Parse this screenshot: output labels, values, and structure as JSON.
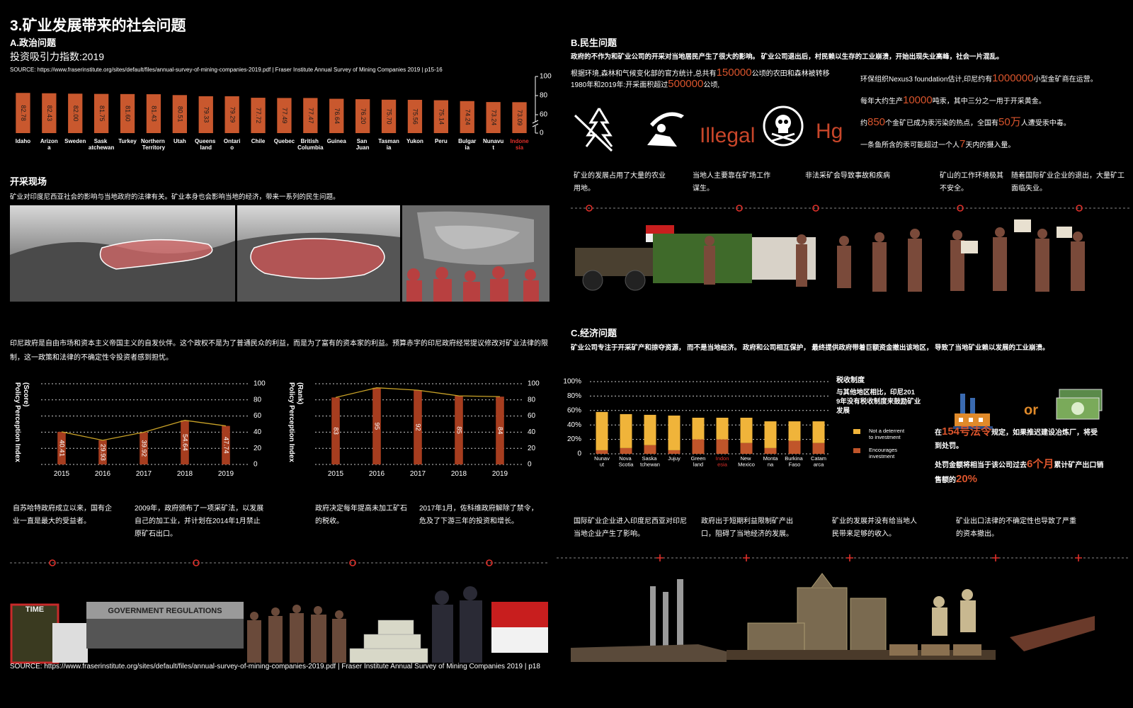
{
  "header": {
    "title": "3.矿业发展带来的社会问题"
  },
  "section_a": {
    "title": "A.政治问题",
    "subtitle": "投资吸引力指数:2019",
    "source": "SOURCE: https://www.fraserinstitute.org/sites/default/files/annual-survey-of-mining-companies-2019.pdf | Fraser Institute Annual Survey of Mining Companies 2019 | p15-16",
    "site_title": "开采现场",
    "site_text": "矿业对印度尼西亚社会的影响与当地政府的法律有关。矿业本身也会影响当地的经济，带来一系列的民生问题。",
    "paragraph": "印尼政府是自由市场和资本主义帝国主义的自发伙伴。这个政权不是为了普通民众的利益，而是为了富有的资本家的利益。预算赤字的印尼政府经常提议修改对矿业法律的限制，这一政策和法律的不确定性令投资者感到担忧。",
    "timeline": [
      "自苏哈特政府成立以来，国有企业一直是最大的受益者。",
      "2009年，政府颁布了一项采矿法，以发展自己的加工业，并计划在2014年1月禁止原矿石出口。",
      "政府决定每年提高未加工矿石的税收。",
      "2017年1月，佐科维政府解除了禁令，危及了下游三年的投资和增长。"
    ],
    "time_cover": "TIME",
    "banner": "GOVERNMENT REGULATIONS",
    "source_bottom": "SOURCE: https://www.fraserinstitute.org/sites/default/files/annual-survey-of-mining-companies-2019.pdf | Fraser Institute Annual Survey of Mining Companies 2019 | p18"
  },
  "section_b": {
    "title": "B.民生问题",
    "lead": "政府的不作为和矿业公司的开采对当地居民产生了很大的影响。 矿业公司退出后，村民赖以生存的工业崩溃，开始出现失业高峰，社会一片混乱。",
    "stats_left": [
      [
        "根据环境,森林和气候变化部的官方统计,总共有",
        "150000",
        "公顷的农田和森林被转移"
      ],
      [
        "1980年和2019年:开采面积超过",
        "500000",
        "公顷,"
      ]
    ],
    "stats_right": [
      [
        "环保组织Nexus3 foundation估计,印尼约有",
        "1000000",
        "小型金矿商在运营。"
      ],
      [
        "每年大约生产",
        "10000",
        "吨汞，其中三分之一用于开采黄金。"
      ],
      [
        "约",
        "850",
        "个金矿已成为汞污染的热点，全国有",
        "50万",
        "人遭受汞中毒。"
      ],
      [
        "一条鱼所含的汞可能超过一个人",
        "7",
        "天内的摄入量。"
      ]
    ],
    "icon_labels": [
      "Illegal",
      "Hg"
    ],
    "timeline": [
      "矿业的发展占用了大量的农业用地。",
      "当地人主要靠在矿场工作谋生。",
      "非法采矿会导致事故和疾病",
      "矿山的工作环境极其不安全。",
      "随着国际矿业企业的退出，大量矿工面临失业。"
    ]
  },
  "section_c": {
    "title": "C.经济问题",
    "lead": "矿业公司专注于开采矿产和掠夺资源， 而不是当地经济。 政府和公司相互保护， 最终提供政府带着巨额资金撤出该地区， 导致了当地矿业赖以发展的工业崩溃。",
    "or": "or",
    "decree": [
      [
        "在",
        "154号法令",
        "规定，如果推迟建设冶炼厂，将受到处罚。"
      ],
      [
        "处罚金额将相当于该公司过去",
        "6个月",
        "累计矿产出口销售额的",
        "20%"
      ]
    ],
    "timeline": [
      "国际矿业企业进入印度尼西亚对印尼当地企业产生了影响。",
      "政府出于短期利益限制矿产出口，阻碍了当地经济的发展。",
      "矿业的发展并没有给当地人民带来足够的收入。",
      "矿业出口法律的不确定性也导致了严重的资本撤出。"
    ]
  },
  "chart_data": [
    {
      "type": "bar",
      "categories": [
        "Idaho",
        "Arizona",
        "Sweden",
        "Sask atchewan",
        "Turkey",
        "Northern Territory",
        "Utah",
        "Queens land",
        "Ontario",
        "Chile",
        "Quebec",
        "British Columbia",
        "Guinea",
        "San Juan",
        "Tasmania",
        "Yukon",
        "Peru",
        "Bulgaria",
        "Nunavut",
        "Indonesia"
      ],
      "values": [
        82.78,
        82.43,
        82.0,
        81.75,
        81.6,
        81.43,
        80.51,
        79.33,
        79.29,
        77.72,
        77.49,
        77.47,
        76.64,
        76.2,
        75.7,
        75.56,
        75.14,
        74.24,
        73.24,
        73.09
      ],
      "value_labels": [
        "82.78",
        "82.43",
        "82.00",
        "81.75",
        "81.60",
        "81.43",
        "80.51",
        "79.33",
        "79.29",
        "77.72",
        "77.49",
        "77.47",
        "76.64",
        "76.20",
        "75.70",
        "75.56",
        "75.14",
        "74.24",
        "73.24",
        "73.09"
      ],
      "color": "#c9582e",
      "tick_label_colors": [
        "#ffffff",
        "#ffffff",
        "#ffffff",
        "#ffffff",
        "#ffffff",
        "#ffffff",
        "#ffffff",
        "#ffffff",
        "#ffffff",
        "#ffffff",
        "#ffffff",
        "#ffffff",
        "#ffffff",
        "#ffffff",
        "#ffffff",
        "#ffffff",
        "#ffffff",
        "#ffffff",
        "#ffffff",
        "#e0302a"
      ],
      "ylim": [
        0,
        100
      ],
      "yticks": [
        0,
        60,
        80,
        100
      ],
      "axis_break": true,
      "grid": false
    },
    {
      "type": "bar",
      "categories": [
        "2015",
        "2016",
        "2017",
        "2018",
        "2019"
      ],
      "values": [
        40.41,
        29.93,
        39.92,
        54.64,
        47.74
      ],
      "color": "#a63d1f",
      "line_color": "#c9a227",
      "y_label": "Policy Perception Index (Score)",
      "ylim": [
        0,
        100
      ],
      "yticks": [
        0,
        20,
        40,
        60,
        80,
        100
      ],
      "grid": true
    },
    {
      "type": "bar",
      "categories": [
        "2015",
        "2016",
        "2017",
        "2018",
        "2019"
      ],
      "values": [
        83,
        95,
        92,
        85,
        84
      ],
      "color": "#a63d1f",
      "line_color": "#c9a227",
      "y_label": "Policy Perception Index (Rank)",
      "ylim": [
        0,
        100
      ],
      "yticks": [
        0,
        20,
        40,
        60,
        80,
        100
      ],
      "grid": true
    },
    {
      "type": "stacked_bar",
      "categories": [
        "Nunavut",
        "Nova Scotia",
        "Saska tchewan",
        "Jujuy",
        "Greenland",
        "Indonesia",
        "New Mexico",
        "Montana",
        "Burkina Faso",
        "Catamarca"
      ],
      "series": [
        {
          "name": "Encourages investment",
          "color": "#c0552a",
          "values": [
            5,
            8,
            12,
            5,
            20,
            20,
            15,
            8,
            18,
            15
          ]
        },
        {
          "name": "Not a deterrent to investment",
          "color": "#f0b43a",
          "values": [
            53,
            47,
            42,
            48,
            30,
            30,
            35,
            37,
            27,
            30
          ]
        }
      ],
      "tick_label_colors": [
        "#ffffff",
        "#ffffff",
        "#ffffff",
        "#ffffff",
        "#ffffff",
        "#e0302a",
        "#ffffff",
        "#ffffff",
        "#ffffff",
        "#ffffff"
      ],
      "ylim": [
        0,
        100
      ],
      "yticks": [
        0,
        {
          "value": 20,
          "label": "20%"
        },
        {
          "value": 40,
          "label": "40%"
        },
        {
          "value": 60,
          "label": "60%"
        },
        {
          "value": 80,
          "label": "80%"
        },
        {
          "value": 100,
          "label": "100%"
        }
      ],
      "grid": true,
      "annotation_title": "税收制度",
      "annotation": "与其他地区相比，印尼2019年没有税收制度来鼓励矿业发展"
    }
  ]
}
